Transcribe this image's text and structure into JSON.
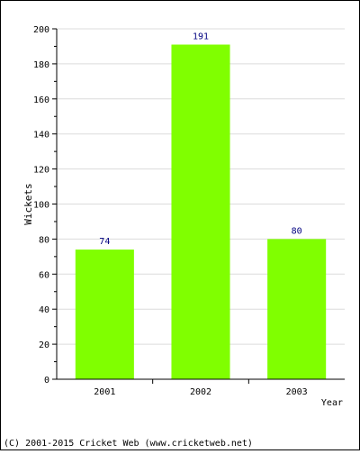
{
  "chart_data": {
    "type": "bar",
    "categories": [
      "2001",
      "2002",
      "2003"
    ],
    "values": [
      74,
      191,
      80
    ],
    "data_labels": [
      "74",
      "191",
      "80"
    ],
    "xlabel": "Year",
    "ylabel": "Wickets",
    "ylim": [
      0,
      200
    ],
    "y_ticks": [
      "0",
      "20",
      "40",
      "60",
      "80",
      "100",
      "120",
      "140",
      "160",
      "180",
      "200"
    ],
    "grid": true,
    "legend": "none",
    "bar_color": "#80ff00",
    "label_color": "#000080"
  },
  "footer": {
    "copyright": "(C) 2001-2015 Cricket Web (www.cricketweb.net)"
  }
}
